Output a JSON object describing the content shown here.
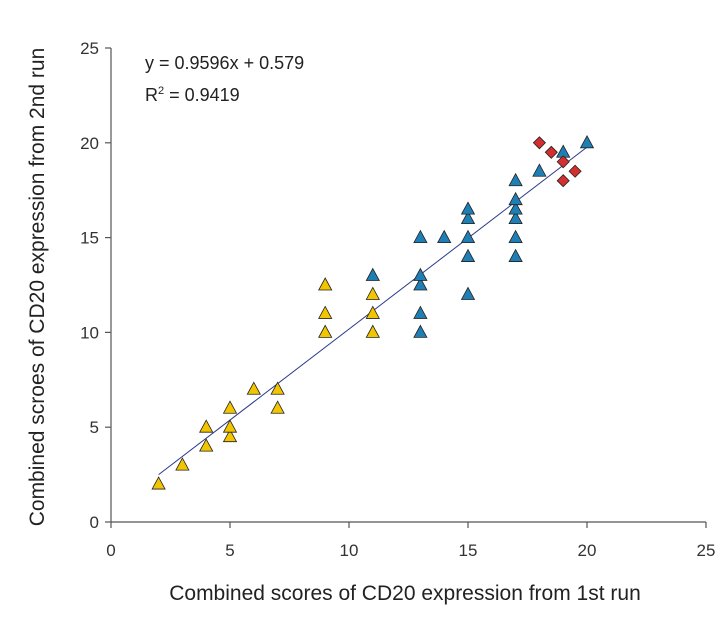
{
  "chart_data": {
    "type": "scatter",
    "xlabel": "Combined scores of CD20 expression from 1st run",
    "ylabel": "Combined scroes of CD20 expression from 2nd run",
    "xlim": [
      0,
      25
    ],
    "ylim": [
      0,
      25
    ],
    "xticks": [
      "0",
      "5",
      "10",
      "15",
      "20",
      "25"
    ],
    "yticks": [
      "0",
      "5",
      "10",
      "15",
      "20",
      "25"
    ],
    "grid": false,
    "annotations": {
      "equation": "y = 0.9596x + 0.579",
      "r2_prefix": "R",
      "r2_sup": "2",
      "r2_value": " = 0.9419"
    },
    "trendline": {
      "slope": 0.9596,
      "intercept": 0.579,
      "x_range": [
        2,
        20
      ],
      "color": "#2b3a8c"
    },
    "series": [
      {
        "name": "yellow-group",
        "marker": "triangle",
        "color": "#f2c500",
        "points": [
          [
            2,
            2
          ],
          [
            3,
            3
          ],
          [
            4,
            4
          ],
          [
            4,
            5
          ],
          [
            5,
            4.5
          ],
          [
            5,
            5
          ],
          [
            5,
            6
          ],
          [
            6,
            7
          ],
          [
            7,
            6
          ],
          [
            7,
            7
          ],
          [
            9,
            10
          ],
          [
            9,
            11
          ],
          [
            9,
            12.5
          ],
          [
            11,
            10
          ],
          [
            11,
            11
          ],
          [
            11,
            12
          ]
        ]
      },
      {
        "name": "blue-group",
        "marker": "triangle",
        "color": "#1f7fb4",
        "points": [
          [
            11,
            13
          ],
          [
            13,
            10
          ],
          [
            13,
            11
          ],
          [
            13,
            12.5
          ],
          [
            13,
            13
          ],
          [
            13,
            15
          ],
          [
            14,
            15
          ],
          [
            15,
            12
          ],
          [
            15,
            14
          ],
          [
            15,
            15
          ],
          [
            15,
            16
          ],
          [
            15,
            16.5
          ],
          [
            17,
            14
          ],
          [
            17,
            15
          ],
          [
            17,
            16
          ],
          [
            17,
            16.5
          ],
          [
            17,
            17
          ],
          [
            17,
            18
          ],
          [
            18,
            18.5
          ],
          [
            19,
            19.5
          ],
          [
            20,
            20
          ]
        ]
      },
      {
        "name": "red-group",
        "marker": "diamond",
        "color": "#d32f2f",
        "points": [
          [
            18,
            20
          ],
          [
            18.5,
            19.5
          ],
          [
            19,
            19
          ],
          [
            19,
            18
          ],
          [
            19.5,
            18.5
          ]
        ]
      }
    ]
  }
}
